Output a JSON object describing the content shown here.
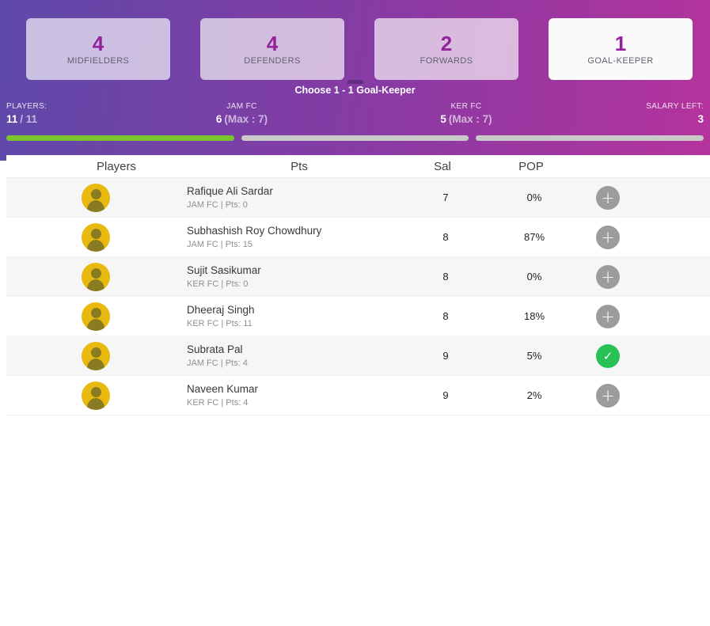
{
  "header": {
    "position_cards": [
      {
        "count": "4",
        "label": "MIDFIELDERS"
      },
      {
        "count": "4",
        "label": "DEFENDERS"
      },
      {
        "count": "2",
        "label": "FORWARDS"
      },
      {
        "count": "1",
        "label": "GOAL-KEEPER"
      }
    ],
    "choose_text": "Choose 1 - 1 Goal-Keeper",
    "stats": {
      "players": {
        "label": "PLAYERS:",
        "value": "11",
        "rest": "/ 11"
      },
      "jam": {
        "label": "JAM FC",
        "value": "6",
        "rest": "(Max : 7)"
      },
      "ker": {
        "label": "KER FC",
        "value": "5",
        "rest": "(Max : 7)"
      },
      "salary": {
        "label": "SALARY LEFT:",
        "value": "3"
      }
    },
    "colors": {
      "gradient_left": "#5e49aa",
      "gradient_right": "#b5339c",
      "accent_purple": "#93239c",
      "progress_green": "#7cc52e",
      "progress_gray": "#c9c9c9",
      "selected_green": "#27c155"
    }
  },
  "table": {
    "columns": {
      "players": "Players",
      "pts": "Pts",
      "sal": "Sal",
      "pop": "POP"
    },
    "add_symbol": "+",
    "check_symbol": "✓",
    "rows": [
      {
        "name": "Rafique Ali Sardar",
        "meta": "JAM FC | Pts: 0",
        "sal": "7",
        "pop": "0%"
      },
      {
        "name": "Subhashish Roy Chowdhury",
        "meta": "JAM FC | Pts: 15",
        "sal": "8",
        "pop": "87%"
      },
      {
        "name": "Sujit Sasikumar",
        "meta": "KER FC | Pts: 0",
        "sal": "8",
        "pop": "0%"
      },
      {
        "name": "Dheeraj Singh",
        "meta": "KER FC | Pts: 11",
        "sal": "8",
        "pop": "18%"
      },
      {
        "name": "Subrata Pal",
        "meta": "JAM FC | Pts: 4",
        "sal": "9",
        "pop": "5%"
      },
      {
        "name": "Naveen Kumar",
        "meta": "KER FC | Pts: 4",
        "sal": "9",
        "pop": "2%"
      }
    ]
  }
}
